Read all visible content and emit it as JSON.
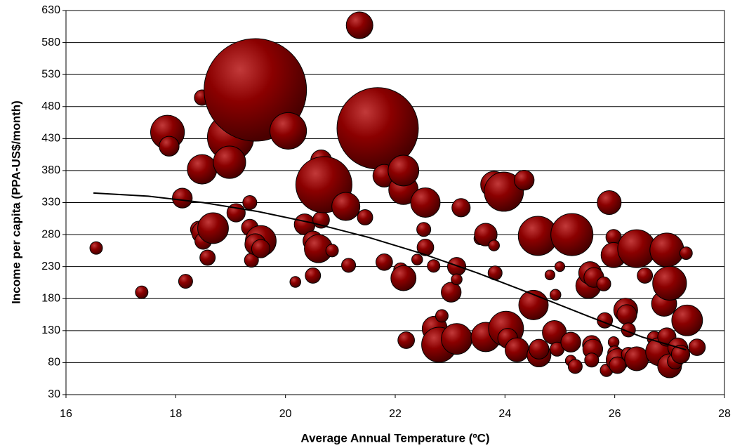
{
  "chart_data": {
    "type": "bubble",
    "xlabel": "Average Annual Temperature (ºC)",
    "ylabel": "Income per capita (PPA-US$/month)",
    "xlim": [
      16,
      28
    ],
    "xticks": [
      16,
      18,
      20,
      22,
      24,
      26,
      28
    ],
    "ylim": [
      30,
      630
    ],
    "yticks": [
      30,
      80,
      130,
      180,
      230,
      280,
      330,
      380,
      430,
      480,
      530,
      580,
      630
    ],
    "grid": true,
    "color": "#8b0000",
    "x": [
      16.55,
      17.38,
      17.85,
      17.88,
      18.12,
      18.18,
      18.48,
      18.48,
      18.42,
      18.5,
      18.5,
      18.58,
      18.68,
      19.0,
      19.1,
      18.98,
      19.35,
      19.35,
      19.38,
      19.45,
      19.55,
      19.45,
      19.55,
      20.05,
      20.18,
      20.35,
      20.5,
      20.5,
      20.6,
      20.65,
      20.65,
      20.7,
      20.85,
      21.1,
      21.15,
      21.35,
      21.45,
      21.68,
      21.8,
      21.8,
      22.1,
      22.15,
      22.15,
      22.15,
      22.2,
      22.4,
      22.55,
      22.52,
      22.55,
      22.7,
      22.72,
      22.8,
      22.85,
      23.02,
      23.12,
      23.12,
      23.12,
      23.2,
      23.55,
      23.65,
      23.65,
      23.8,
      23.8,
      23.82,
      23.9,
      23.98,
      24.02,
      24.05,
      24.22,
      24.35,
      24.52,
      24.6,
      24.62,
      24.62,
      24.9,
      24.82,
      24.92,
      24.95,
      25.0,
      25.2,
      25.22,
      25.2,
      25.28,
      25.52,
      25.55,
      25.58,
      25.6,
      25.62,
      25.58,
      25.8,
      25.82,
      25.85,
      25.9,
      25.98,
      25.98,
      25.98,
      26.0,
      26.05,
      26.05,
      26.2,
      26.22,
      26.25,
      26.25,
      26.4,
      26.4,
      26.55,
      26.72,
      26.82,
      26.9,
      26.95,
      27.0,
      26.95,
      27.0,
      27.1,
      27.15,
      27.2,
      27.3,
      27.32,
      27.5
    ],
    "values": [
      259,
      190,
      440,
      418,
      337,
      207,
      494,
      382,
      288,
      283,
      270,
      244,
      290,
      432,
      314,
      393,
      330,
      291,
      240,
      506,
      270,
      265,
      258,
      442,
      206,
      296,
      270,
      216,
      258,
      303,
      396,
      358,
      255,
      324,
      232,
      607,
      307,
      446,
      237,
      372,
      225,
      350,
      212,
      380,
      115,
      241,
      330,
      288,
      260,
      231,
      133,
      108,
      153,
      190,
      230,
      210,
      117,
      322,
      274,
      280,
      120,
      358,
      263,
      220,
      355,
      347,
      133,
      118,
      100,
      365,
      170,
      278,
      92,
      101,
      127,
      217,
      186,
      101,
      230,
      112,
      280,
      83,
      74,
      200,
      220,
      108,
      101,
      213,
      84,
      203,
      146,
      68,
      330,
      276,
      248,
      112,
      95,
      84,
      76,
      162,
      155,
      131,
      93,
      86,
      258,
      216,
      118,
      97,
      172,
      256,
      204,
      120,
      75,
      82,
      103,
      93,
      251,
      146,
      104
    ],
    "sizes": [
      8,
      8,
      58,
      20,
      20,
      10,
      12,
      44,
      14,
      26,
      14,
      12,
      48,
      109,
      17,
      53,
      10,
      14,
      10,
      533,
      48,
      22,
      17,
      68,
      6,
      22,
      20,
      12,
      40,
      14,
      22,
      160,
      8,
      40,
      10,
      36,
      12,
      336,
      14,
      26,
      10,
      44,
      32,
      48,
      14,
      6,
      44,
      10,
      14,
      8,
      32,
      62,
      8,
      20,
      17,
      6,
      48,
      17,
      8,
      26,
      44,
      36,
      6,
      10,
      22,
      78,
      62,
      20,
      29,
      20,
      44,
      78,
      29,
      20,
      29,
      5,
      6,
      10,
      5,
      20,
      90,
      6,
      10,
      32,
      26,
      17,
      20,
      20,
      10,
      10,
      12,
      8,
      29,
      12,
      32,
      6,
      10,
      26,
      14,
      29,
      20,
      10,
      10,
      29,
      73,
      12,
      10,
      40,
      32,
      58,
      58,
      17,
      29,
      12,
      20,
      17,
      8,
      48,
      14
    ],
    "trendline": {
      "x": [
        16.5,
        17.5,
        18.5,
        19.5,
        20.5,
        21.5,
        22.5,
        23.5,
        24.5,
        25.5,
        26.5,
        27.3
      ],
      "values": [
        345,
        340,
        330,
        316,
        298,
        276,
        250,
        220,
        187,
        153,
        120,
        100
      ]
    }
  }
}
